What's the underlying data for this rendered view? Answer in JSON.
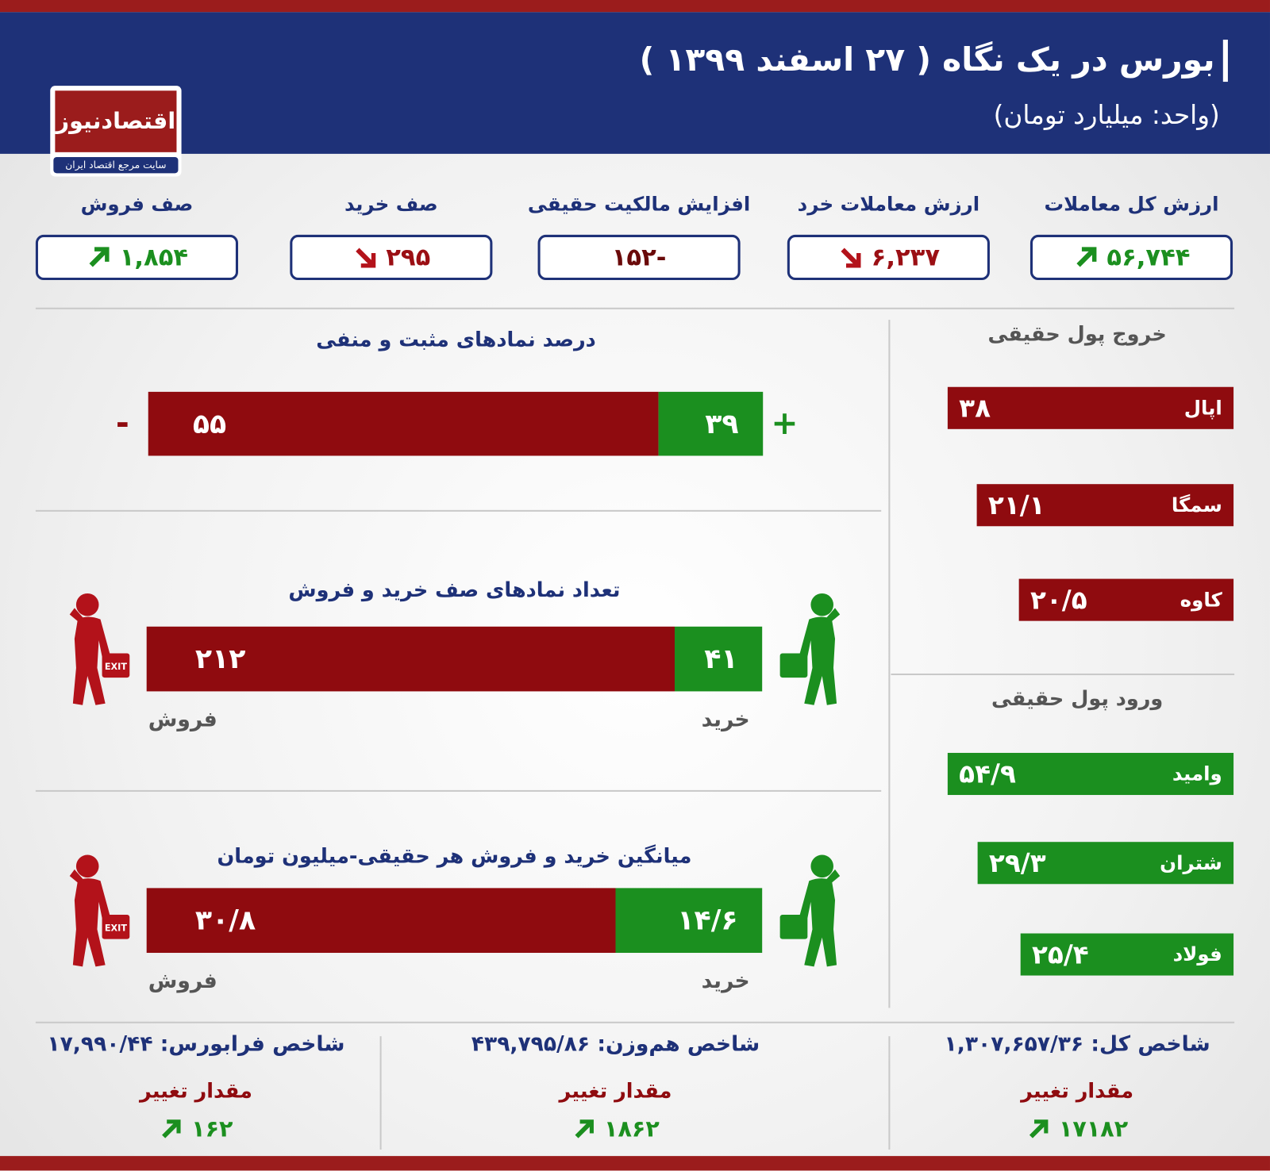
{
  "header": {
    "title": "بورس در یک نگاه ( ۲۷ اسفند ۱۳۹۹ )",
    "unit": "(واحد: میلیارد تومان)"
  },
  "logo": {
    "name": "اقتصادنیوز",
    "tagline": "سایت مرجع اقتصاد ایران"
  },
  "kpis": [
    {
      "label": "ارزش کل معاملات",
      "value": "۵۶,۷۴۴",
      "trend": "up"
    },
    {
      "label": "ارزش معاملات خرد",
      "value": "۶,۲۳۷",
      "trend": "down"
    },
    {
      "label": "افزایش مالکیت حقیقی",
      "value": "-۱۵۲"
    },
    {
      "label": "صف خرید",
      "value": "۲۹۵",
      "trend": "down"
    },
    {
      "label": "صف فروش",
      "value": "۱,۸۵۴",
      "trend": "up"
    }
  ],
  "positive_negative": {
    "title": "درصد نمادهای مثبت و منفی",
    "negative": "۵۵",
    "positive": "۳۹",
    "negative_sign": "-",
    "positive_sign": "+"
  },
  "queues": {
    "title": "تعداد نمادهای صف خرید و فروش",
    "sell": "۲۱۲",
    "buy": "۴۱",
    "sell_label": "فروش",
    "buy_label": "خرید"
  },
  "averages": {
    "title": "میانگین خرید و فروش هر حقیقی-میلیون تومان",
    "sell": "۳۰/۸",
    "buy": "۱۴/۶",
    "sell_label": "فروش",
    "buy_label": "خرید"
  },
  "exit_sign": "EXIT",
  "outflow": {
    "title": "خروج پول حقیقی",
    "items": [
      {
        "symbol": "اپال",
        "value": "۳۸"
      },
      {
        "symbol": "سمگا",
        "value": "۲۱/۱"
      },
      {
        "symbol": "کاوه",
        "value": "۲۰/۵"
      }
    ]
  },
  "inflow": {
    "title": "ورود پول حقیقی",
    "items": [
      {
        "symbol": "وامید",
        "value": "۵۴/۹"
      },
      {
        "symbol": "شتران",
        "value": "۲۹/۳"
      },
      {
        "symbol": "فولاد",
        "value": "۲۵/۴"
      }
    ]
  },
  "indices": [
    {
      "label": "شاخص کل:",
      "value": "۱,۳۰۷,۶۵۷/۳۶",
      "change_label": "مقدار تغییر",
      "change": "۱۷۱۸۲"
    },
    {
      "label": "شاخص هم‌وزن:",
      "value": "۴۳۹,۷۹۵/۸۶",
      "change_label": "مقدار تغییر",
      "change": "۱۸۶۲"
    },
    {
      "label": "شاخص فرابورس:",
      "value": "۱۷,۹۹۰/۴۴",
      "change_label": "مقدار تغییر",
      "change": "۱۶۲"
    }
  ]
}
